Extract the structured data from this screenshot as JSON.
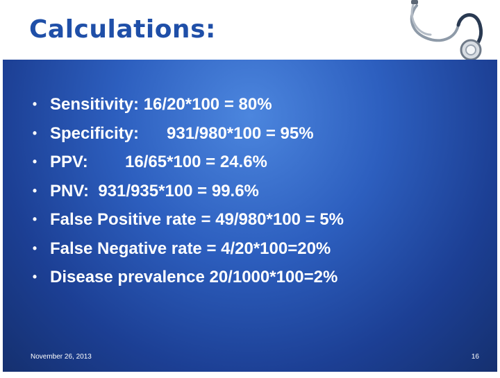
{
  "slide": {
    "title": "Calculations:",
    "bullet_glyph": "•",
    "bullets": [
      "Sensitivity: 16/20*100 = 80%",
      "Specificity:      931/980*100 = 95%",
      "PPV:        16/65*100 = 24.6%",
      "PNV:  931/935*100 = 99.6%",
      "False Positive rate = 49/980*100 = 5%",
      "False Negative rate = 4/20*100=20%",
      "Disease prevalence 20/1000*100=2%"
    ],
    "footer": {
      "date": "November 26, 2013",
      "page_number": "16"
    }
  },
  "colors": {
    "title": "#1f4fa8",
    "panel_light": "#4c86de",
    "panel_dark": "#15306f",
    "text": "#ffffff"
  }
}
